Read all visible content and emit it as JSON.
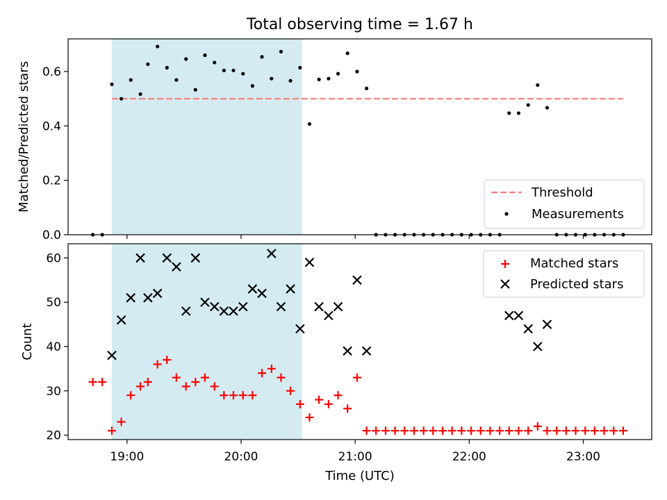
{
  "figure": {
    "title": "Total observing time = 1.67 h",
    "xlabel": "Time (UTC)",
    "shaded_interval": {
      "start_hours": 18.8667,
      "end_hours": 20.5333,
      "color": "#add8e6"
    }
  },
  "chart_data": [
    {
      "type": "scatter",
      "ylabel": "Matched/Predicted stars",
      "xlim_hours": [
        18.4833,
        23.6
      ],
      "ylim": [
        0,
        0.72
      ],
      "yticks": [
        0.0,
        0.2,
        0.4,
        0.6
      ],
      "ytick_labels": [
        "0.0",
        "0.2",
        "0.4",
        "0.6"
      ],
      "legend_position": "bottom-right",
      "threshold": {
        "name": "Threshold",
        "value": 0.5,
        "color": "#ff7a7a",
        "x_start_hours": 18.8667,
        "x_end_hours": 23.35
      },
      "series": [
        {
          "name": "Measurements",
          "marker": "dot",
          "color": "#000000",
          "x_hours": [
            18.7,
            18.783,
            18.867,
            18.95,
            19.033,
            19.117,
            19.183,
            19.267,
            19.35,
            19.433,
            19.517,
            19.6,
            19.683,
            19.767,
            19.85,
            19.933,
            20.017,
            20.1,
            20.183,
            20.267,
            20.35,
            20.433,
            20.517,
            20.6,
            20.683,
            20.767,
            20.85,
            20.933,
            21.017,
            21.1,
            21.183,
            21.267,
            21.35,
            21.433,
            21.517,
            21.6,
            21.683,
            21.767,
            21.85,
            21.933,
            22.017,
            22.1,
            22.183,
            22.267,
            22.35,
            22.433,
            22.517,
            22.6,
            22.683,
            22.767,
            22.85,
            22.933,
            23.017,
            23.1,
            23.183,
            23.267,
            23.35
          ],
          "y": [
            0.0,
            0.0,
            0.553,
            0.5,
            0.569,
            0.517,
            0.627,
            0.692,
            0.614,
            0.569,
            0.646,
            0.533,
            0.66,
            0.633,
            0.604,
            0.604,
            0.592,
            0.547,
            0.654,
            0.574,
            0.673,
            0.566,
            0.614,
            0.407,
            0.571,
            0.574,
            0.592,
            0.667,
            0.6,
            0.538,
            0.0,
            0.0,
            0.0,
            0.0,
            0.0,
            0.0,
            0.0,
            0.0,
            0.0,
            0.0,
            0.0,
            0.0,
            0.0,
            0.0,
            0.447,
            0.447,
            0.477,
            0.55,
            0.467,
            0.0,
            0.0,
            0.0,
            0.0,
            0.0,
            0.0,
            0.0,
            0.0
          ]
        }
      ]
    },
    {
      "type": "scatter",
      "ylabel": "Count",
      "xlim_hours": [
        18.4833,
        23.6
      ],
      "ylim": [
        19,
        63.2
      ],
      "yticks": [
        20,
        30,
        40,
        50,
        60
      ],
      "ytick_labels": [
        "20",
        "30",
        "40",
        "50",
        "60"
      ],
      "xticks_hours": [
        19,
        20,
        21,
        22,
        23
      ],
      "xtick_labels": [
        "19:00",
        "20:00",
        "21:00",
        "22:00",
        "23:00"
      ],
      "legend_position": "top-right",
      "series": [
        {
          "name": "Matched stars",
          "marker": "plus",
          "color": "#ff0000",
          "x_hours": [
            18.7,
            18.783,
            18.867,
            18.95,
            19.033,
            19.117,
            19.183,
            19.267,
            19.35,
            19.433,
            19.517,
            19.6,
            19.683,
            19.767,
            19.85,
            19.933,
            20.017,
            20.1,
            20.183,
            20.267,
            20.35,
            20.433,
            20.517,
            20.6,
            20.683,
            20.767,
            20.85,
            20.933,
            21.017,
            21.1,
            21.183,
            21.267,
            21.35,
            21.433,
            21.517,
            21.6,
            21.683,
            21.767,
            21.85,
            21.933,
            22.017,
            22.1,
            22.183,
            22.267,
            22.35,
            22.433,
            22.517,
            22.6,
            22.683,
            22.767,
            22.85,
            22.933,
            23.017,
            23.1,
            23.183,
            23.267,
            23.35
          ],
          "y": [
            32,
            32,
            21,
            23,
            29,
            31,
            32,
            36,
            37,
            33,
            31,
            32,
            33,
            31,
            29,
            29,
            29,
            29,
            34,
            35,
            33,
            30,
            27,
            24,
            28,
            27,
            29,
            26,
            33,
            21,
            21,
            21,
            21,
            21,
            21,
            21,
            21,
            21,
            21,
            21,
            21,
            21,
            21,
            21,
            21,
            21,
            21,
            22,
            21,
            21,
            21,
            21,
            21,
            21,
            21,
            21,
            21
          ]
        },
        {
          "name": "Predicted stars",
          "marker": "x",
          "color": "#000000",
          "x_hours": [
            18.867,
            18.95,
            19.033,
            19.117,
            19.183,
            19.267,
            19.35,
            19.433,
            19.517,
            19.6,
            19.683,
            19.767,
            19.85,
            19.933,
            20.017,
            20.1,
            20.183,
            20.267,
            20.35,
            20.433,
            20.517,
            20.6,
            20.683,
            20.767,
            20.85,
            20.933,
            21.017,
            21.1,
            22.35,
            22.433,
            22.517,
            22.6,
            22.683
          ],
          "y": [
            38,
            46,
            51,
            60,
            51,
            52,
            60,
            58,
            48,
            60,
            50,
            49,
            48,
            48,
            49,
            53,
            52,
            61,
            49,
            53,
            44,
            59,
            49,
            47,
            49,
            39,
            55,
            39,
            47,
            47,
            44,
            40,
            45
          ]
        }
      ]
    }
  ]
}
